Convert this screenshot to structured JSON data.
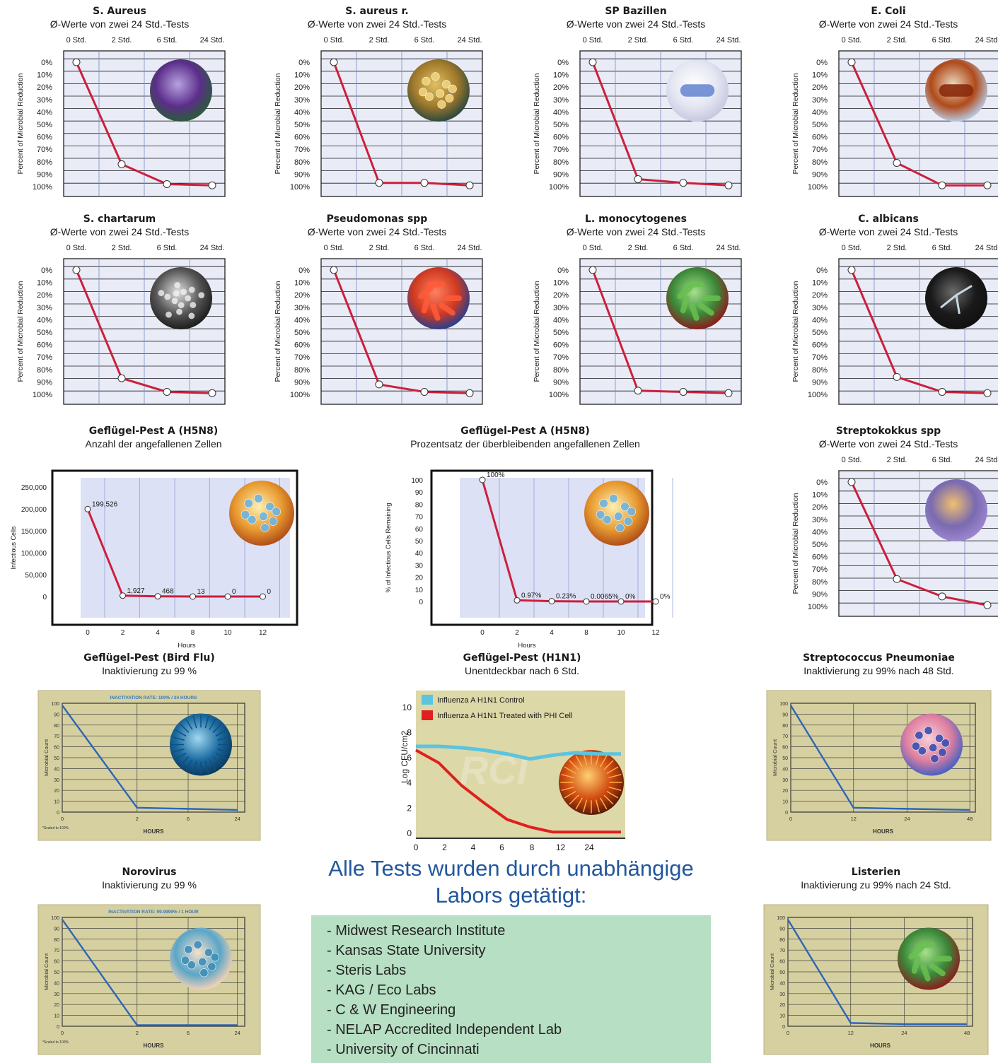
{
  "chart_data": [
    {
      "type": "line",
      "title": "S. Aureus",
      "subtitle": "Ø-Werte von zwei 24 Std.-Tests",
      "ylabel": "Percent of Microbial Reduction",
      "xticks": [
        "0 Std.",
        "2 Std.",
        "6 Std.",
        "24 Std."
      ],
      "yticks": [
        "0%",
        "10%",
        "20%",
        "30%",
        "40%",
        "50%",
        "60%",
        "70%",
        "80%",
        "90%",
        "100%"
      ],
      "ylim": [
        0,
        100
      ],
      "y_inverted": true,
      "values": [
        0,
        82,
        98,
        99
      ],
      "image": "purple bacteria culture"
    },
    {
      "type": "line",
      "title": "S. aureus r.",
      "subtitle": "Ø-Werte von zwei 24 Std.-Tests",
      "ylabel": "Percent of Microbial Reduction",
      "xticks": [
        "0 Std.",
        "2 Std.",
        "6 Std.",
        "24 Std."
      ],
      "yticks": [
        "0%",
        "10%",
        "20%",
        "30%",
        "40%",
        "50%",
        "60%",
        "70%",
        "80%",
        "90%",
        "100%"
      ],
      "ylim": [
        0,
        100
      ],
      "y_inverted": true,
      "values": [
        0,
        97,
        97,
        99
      ],
      "image": "golden cocci cluster"
    },
    {
      "type": "line",
      "title": "SP Bazillen",
      "subtitle": "Ø-Werte von zwei 24 Std.-Tests",
      "ylabel": "Percent of Microbial Reduction",
      "xticks": [
        "0 Std.",
        "2 Std.",
        "6 Std.",
        "24 Std."
      ],
      "yticks": [
        "0%",
        "10%",
        "20%",
        "30%",
        "40%",
        "50%",
        "60%",
        "70%",
        "80%",
        "90%",
        "100%"
      ],
      "ylim": [
        0,
        100
      ],
      "y_inverted": true,
      "values": [
        0,
        94,
        97,
        99
      ],
      "image": "flagellated bacillus"
    },
    {
      "type": "line",
      "title": "E. Coli",
      "subtitle": "Ø-Werte von zwei 24 Std.-Tests",
      "ylabel": "Percent of Microbial Reduction",
      "xticks": [
        "0 Std.",
        "2 Std.",
        "6 Std.",
        "24 Std."
      ],
      "yticks": [
        "0%",
        "10%",
        "20%",
        "30%",
        "40%",
        "50%",
        "60%",
        "70%",
        "80%",
        "90%",
        "100%"
      ],
      "ylim": [
        0,
        100
      ],
      "y_inverted": true,
      "values": [
        0,
        81,
        99,
        99
      ],
      "image": "rod bacterium"
    },
    {
      "type": "line",
      "title": "S. chartarum",
      "subtitle": "Ø-Werte von zwei 24 Std.-Tests",
      "ylabel": "Percent of Microbial Reduction",
      "xticks": [
        "0 Std.",
        "2 Std.",
        "6 Std.",
        "24 Std."
      ],
      "yticks": [
        "0%",
        "10%",
        "20%",
        "30%",
        "40%",
        "50%",
        "60%",
        "70%",
        "80%",
        "90%",
        "100%"
      ],
      "ylim": [
        0,
        100
      ],
      "y_inverted": true,
      "values": [
        0,
        87,
        98,
        99
      ],
      "image": "black mold spores"
    },
    {
      "type": "line",
      "title": "Pseudomonas spp",
      "subtitle": "Ø-Werte von zwei 24 Std.-Tests",
      "ylabel": "Percent of Microbial Reduction",
      "xticks": [
        "0 Std.",
        "2 Std.",
        "6 Std.",
        "24 Std."
      ],
      "yticks": [
        "0%",
        "10%",
        "20%",
        "30%",
        "40%",
        "50%",
        "60%",
        "70%",
        "80%",
        "90%",
        "100%"
      ],
      "ylim": [
        0,
        100
      ],
      "y_inverted": true,
      "values": [
        0,
        92,
        98,
        99
      ],
      "image": "orange rod bacteria"
    },
    {
      "type": "line",
      "title": "L. monocytogenes",
      "subtitle": "Ø-Werte von zwei 24 Std.-Tests",
      "ylabel": "Percent of Microbial Reduction",
      "xticks": [
        "0 Std.",
        "2 Std.",
        "6 Std.",
        "24 Std."
      ],
      "yticks": [
        "0%",
        "10%",
        "20%",
        "30%",
        "40%",
        "50%",
        "60%",
        "70%",
        "80%",
        "90%",
        "100%"
      ],
      "ylim": [
        0,
        100
      ],
      "y_inverted": true,
      "values": [
        0,
        97,
        98,
        99
      ],
      "image": "green rod bacteria"
    },
    {
      "type": "line",
      "title": "C. albicans",
      "subtitle": "Ø-Werte von zwei 24 Std.-Tests",
      "ylabel": "Percent of Microbial Reduction",
      "xticks": [
        "0 Std.",
        "2 Std.",
        "6 Std.",
        "24 Std."
      ],
      "yticks": [
        "0%",
        "10%",
        "20%",
        "30%",
        "40%",
        "50%",
        "60%",
        "70%",
        "80%",
        "90%",
        "100%"
      ],
      "ylim": [
        0,
        100
      ],
      "y_inverted": true,
      "values": [
        0,
        86,
        98,
        99
      ],
      "image": "fungal hyphae"
    },
    {
      "type": "line",
      "title": "Geflügel-Pest A (H5N8)",
      "subtitle": "Anzahl der angefallenen Zellen",
      "xlabel": "Hours",
      "ylabel": "Infectious Cells",
      "x": [
        "0",
        "2",
        "4",
        "8",
        "10",
        "12"
      ],
      "values": [
        199526,
        1927,
        468,
        13,
        0,
        0
      ],
      "data_labels": [
        "199,526",
        "1,927",
        "468",
        "13",
        "0",
        "0"
      ],
      "yticks": [
        "250,000",
        "200,000",
        "150,000",
        "100,000",
        "50,000",
        "0"
      ],
      "ylim": [
        0,
        250000
      ],
      "image": "virus cluster"
    },
    {
      "type": "line",
      "title": "Geflügel-Pest A (H5N8)",
      "subtitle": "Prozentsatz der überbleibenden angefallenen Zellen",
      "xlabel": "Hours",
      "ylabel": "% of Infectious Cells Remaining",
      "x": [
        "0",
        "2",
        "4",
        "8",
        "10",
        "12"
      ],
      "values": [
        100,
        0.97,
        0.23,
        0.0065,
        0,
        0
      ],
      "data_labels": [
        "100%",
        "0.97%",
        "0.23%",
        "0.0065%",
        "0%",
        "0%"
      ],
      "yticks": [
        "100",
        "90",
        "80",
        "70",
        "60",
        "50",
        "40",
        "30",
        "20",
        "10",
        "0"
      ],
      "ylim": [
        0,
        100
      ],
      "image": "virus cluster"
    },
    {
      "type": "line",
      "title": "Streptokokkus spp",
      "subtitle": "Ø-Werte von zwei 24 Std.-Tests",
      "ylabel": "Percent of Microbial Reduction",
      "xticks": [
        "0 Std.",
        "2 Std.",
        "6 Std.",
        "24 Std."
      ],
      "yticks": [
        "0%",
        "10%",
        "20%",
        "30%",
        "40%",
        "50%",
        "60%",
        "70%",
        "80%",
        "90%",
        "100%"
      ],
      "ylim": [
        0,
        100
      ],
      "y_inverted": true,
      "values": [
        0,
        78,
        92,
        99
      ],
      "image": "streptococci"
    },
    {
      "type": "line",
      "title": "Geflügel-Pest (Bird Flu)",
      "subtitle": "Inaktivierung zu 99 %",
      "inner_title": "INACTIVATION RATE: 100% / 24 HOURS",
      "xlabel": "HOURS",
      "ylabel": "Microbial Count",
      "xticks": [
        "0",
        "2",
        "6",
        "24"
      ],
      "yticks": [
        "100",
        "90",
        "80",
        "70",
        "60",
        "50",
        "40",
        "30",
        "20",
        "10",
        "0"
      ],
      "ylim": [
        0,
        100
      ],
      "values": [
        98,
        4,
        3,
        2
      ],
      "footnote": "*Scaled to 100%",
      "image": "spiky virus"
    },
    {
      "type": "line",
      "title": "Geflügel-Pest (H1N1)",
      "subtitle": "Unentdeckbar nach 6 Std.",
      "ylabel": "Log CFU/cm2",
      "xticks": [
        "0",
        "2",
        "4",
        "6",
        "8",
        "12",
        "24"
      ],
      "yticks": [
        "0",
        "2",
        "4",
        "6",
        "8",
        "10"
      ],
      "ylim": [
        0,
        11
      ],
      "series": [
        {
          "name": "Influenza A H1N1 Control",
          "color": "#5bc4df",
          "values": [
            6.9,
            6.9,
            6.8,
            6.6,
            6.3,
            5.9,
            6.2,
            6.4,
            6.3,
            6.3
          ]
        },
        {
          "name": "Influenza A H1N1 Treated with PHI Cell",
          "color": "#e01f1f",
          "values": [
            6.6,
            5.6,
            3.8,
            2.4,
            1.1,
            0.5,
            0.1,
            0.1,
            0.1,
            0.1
          ]
        }
      ],
      "watermark": "RCI",
      "image": "coronavirus"
    },
    {
      "type": "line",
      "title": "Streptococcus Pneumoniae",
      "subtitle": "Inaktivierung zu 99% nach 48 Std.",
      "xlabel": "HOURS",
      "ylabel": "Microbial Count",
      "xticks": [
        "0",
        "12",
        "24",
        "48"
      ],
      "yticks": [
        "100",
        "90",
        "80",
        "70",
        "60",
        "50",
        "40",
        "30",
        "20",
        "10",
        "0"
      ],
      "ylim": [
        0,
        100
      ],
      "values": [
        98,
        4,
        3,
        2
      ],
      "image": "pneumococci"
    },
    {
      "type": "line",
      "title": "Norovirus",
      "subtitle": "Inaktivierung zu 99 %",
      "inner_title": "INACTIVATION RATE: 99.9999% / 1 HOUR",
      "xlabel": "HOURS",
      "ylabel": "Microbial Count",
      "xticks": [
        "0",
        "2",
        "6",
        "24"
      ],
      "yticks": [
        "100",
        "90",
        "80",
        "70",
        "60",
        "50",
        "40",
        "30",
        "20",
        "10",
        "0"
      ],
      "ylim": [
        0,
        100
      ],
      "values": [
        98,
        1,
        1,
        1
      ],
      "footnote": "*Scaled to 100%",
      "image": "norovirus particle"
    },
    {
      "type": "line",
      "title": "Listerien",
      "subtitle": "Inaktivierung zu 99% nach 24 Std.",
      "xlabel": "HOURS",
      "ylabel": "Microbial Count",
      "xticks": [
        "0",
        "12",
        "24",
        "48"
      ],
      "yticks": [
        "100",
        "90",
        "80",
        "70",
        "60",
        "50",
        "40",
        "30",
        "20",
        "10",
        "0"
      ],
      "ylim": [
        0,
        100
      ],
      "values": [
        98,
        3,
        2,
        2
      ],
      "image": "listeria bacteria"
    }
  ],
  "tests_heading": [
    "Alle Tests wurden durch unabhängige",
    "Labors getätigt:"
  ],
  "labs": [
    "- Midwest Research Institute",
    "- Kansas State University",
    "- Steris Labs",
    "- KAG / Eco Labs",
    "- C & W Engineering",
    "- NELAP Accredited Independent Lab",
    "- University of Cincinnati"
  ],
  "colors": {
    "line_red": "#cc1f3c",
    "grid_bg": "#e9ecf7",
    "tan_bg": "#d6d0a0",
    "blue_line": "#2c66b8",
    "heading_blue": "#22579d",
    "labs_bg": "#b7dfc3",
    "control_cyan": "#5bc4df",
    "treated_red": "#e01f1f"
  }
}
